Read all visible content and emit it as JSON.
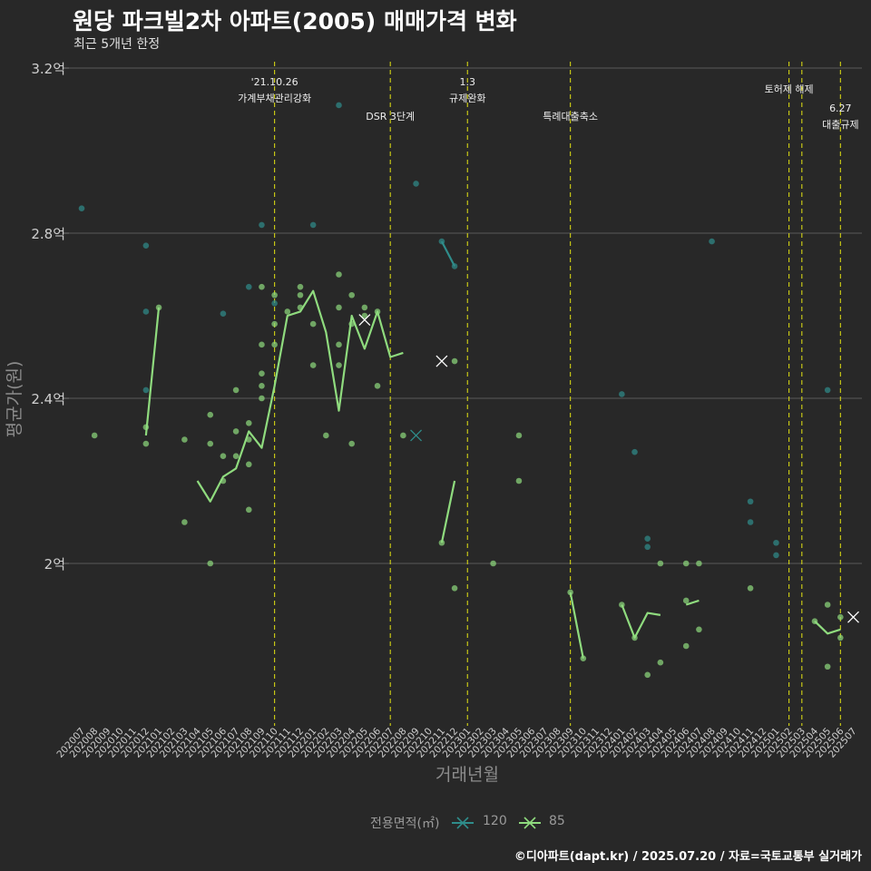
{
  "title": "원당 파크빌2차 아파트(2005) 매매가격 변화",
  "subtitle": "최근 5개년 한정",
  "caption": "©디아파트(dapt.kr) / 2025.07.20 / 자료=국토교통부 실거래가",
  "colors": {
    "s120": "#2f8d8b",
    "s85": "#8fdb7e",
    "event": "#d4d414",
    "grid": "#5a5a5a",
    "bg": "#282828"
  },
  "chart_data": {
    "type": "line",
    "xlabel": "거래년월",
    "ylabel": "평균가(원)",
    "y_ticks": [
      "2억",
      "2.4억",
      "2.8억",
      "3.2억"
    ],
    "y_tick_values": [
      2.0,
      2.4,
      2.8,
      3.2
    ],
    "ylim": [
      1.63,
      3.2
    ],
    "grid": true,
    "legend_position": "bottom",
    "legend_title": "전용면적(㎡)",
    "categories": [
      "202007",
      "202008",
      "202009",
      "202010",
      "202011",
      "202012",
      "202101",
      "202102",
      "202103",
      "202104",
      "202105",
      "202106",
      "202107",
      "202108",
      "202109",
      "202110",
      "202111",
      "202112",
      "202201",
      "202202",
      "202203",
      "202204",
      "202205",
      "202206",
      "202207",
      "202208",
      "202209",
      "202210",
      "202211",
      "202212",
      "202301",
      "202302",
      "202303",
      "202304",
      "202305",
      "202306",
      "202307",
      "202308",
      "202309",
      "202310",
      "202311",
      "202312",
      "202401",
      "202402",
      "202403",
      "202404",
      "202405",
      "202406",
      "202407",
      "202408",
      "202409",
      "202410",
      "202411",
      "202412",
      "202501",
      "202502",
      "202503",
      "202504",
      "202505",
      "202506",
      "202507"
    ],
    "series": [
      {
        "name": "120",
        "values": [
          2.86,
          null,
          null,
          null,
          null,
          2.61,
          null,
          null,
          null,
          null,
          null,
          2.605,
          null,
          2.67,
          null,
          2.63,
          null,
          null,
          2.82,
          null,
          3.11,
          null,
          null,
          null,
          null,
          null,
          2.92,
          null,
          2.78,
          2.72,
          null,
          null,
          null,
          null,
          null,
          null,
          null,
          null,
          null,
          null,
          null,
          null,
          2.41,
          null,
          2.06,
          null,
          null,
          null,
          null,
          2.78,
          null,
          null,
          2.12,
          null,
          2.02,
          null,
          null,
          null,
          2.42,
          null,
          null
        ],
        "points": [
          [
            0,
            2.86
          ],
          [
            5,
            2.61
          ],
          [
            5,
            2.42
          ],
          [
            5,
            2.77
          ],
          [
            11,
            2.605
          ],
          [
            13,
            2.67
          ],
          [
            14,
            2.82
          ],
          [
            15,
            2.63
          ],
          [
            18,
            2.82
          ],
          [
            20,
            3.11
          ],
          [
            26,
            2.92
          ],
          [
            28,
            2.78
          ],
          [
            29,
            2.72
          ],
          [
            42,
            2.41
          ],
          [
            43,
            2.27
          ],
          [
            44,
            2.06
          ],
          [
            44,
            2.04
          ],
          [
            49,
            2.78
          ],
          [
            52,
            2.15
          ],
          [
            52,
            2.1
          ],
          [
            54,
            2.02
          ],
          [
            54,
            2.05
          ],
          [
            58,
            2.42
          ]
        ],
        "markers_x": [
          [
            26,
            2.31
          ]
        ]
      },
      {
        "name": "85",
        "values": [
          null,
          null,
          null,
          null,
          null,
          2.31,
          2.62,
          null,
          null,
          2.2,
          2.15,
          2.21,
          2.23,
          2.32,
          2.28,
          2.43,
          2.6,
          2.61,
          2.66,
          2.56,
          2.37,
          2.6,
          2.52,
          2.61,
          2.5,
          2.51,
          null,
          null,
          2.05,
          2.2,
          null,
          null,
          null,
          null,
          null,
          null,
          null,
          null,
          1.93,
          1.77,
          null,
          null,
          1.9,
          1.82,
          1.88,
          1.875,
          null,
          1.9,
          1.91,
          null,
          null,
          null,
          null,
          null,
          null,
          null,
          null,
          1.86,
          1.83,
          1.84,
          null
        ],
        "points": [
          [
            1,
            2.31
          ],
          [
            5,
            2.33
          ],
          [
            5,
            2.29
          ],
          [
            6,
            2.62
          ],
          [
            8,
            2.3
          ],
          [
            8,
            2.1
          ],
          [
            10,
            2.36
          ],
          [
            10,
            2.29
          ],
          [
            10,
            2.0
          ],
          [
            11,
            2.26
          ],
          [
            11,
            2.2
          ],
          [
            12,
            2.42
          ],
          [
            12,
            2.26
          ],
          [
            12,
            2.32
          ],
          [
            13,
            2.34
          ],
          [
            13,
            2.3
          ],
          [
            13,
            2.24
          ],
          [
            13,
            2.13
          ],
          [
            14,
            2.43
          ],
          [
            14,
            2.4
          ],
          [
            14,
            2.53
          ],
          [
            14,
            2.46
          ],
          [
            14,
            2.67
          ],
          [
            15,
            2.65
          ],
          [
            15,
            2.53
          ],
          [
            15,
            2.58
          ],
          [
            16,
            2.61
          ],
          [
            17,
            2.67
          ],
          [
            17,
            2.65
          ],
          [
            17,
            2.62
          ],
          [
            18,
            2.58
          ],
          [
            18,
            2.48
          ],
          [
            19,
            2.31
          ],
          [
            20,
            2.7
          ],
          [
            20,
            2.62
          ],
          [
            20,
            2.53
          ],
          [
            20,
            2.48
          ],
          [
            21,
            2.65
          ],
          [
            21,
            2.58
          ],
          [
            21,
            2.29
          ],
          [
            22,
            2.62
          ],
          [
            22,
            2.6
          ],
          [
            23,
            2.43
          ],
          [
            23,
            2.61
          ],
          [
            25,
            2.31
          ],
          [
            28,
            2.05
          ],
          [
            29,
            2.49
          ],
          [
            29,
            1.94
          ],
          [
            32,
            2.0
          ],
          [
            34,
            2.31
          ],
          [
            34,
            2.2
          ],
          [
            38,
            1.93
          ],
          [
            39,
            1.77
          ],
          [
            42,
            1.9
          ],
          [
            43,
            1.82
          ],
          [
            44,
            1.73
          ],
          [
            45,
            2.0
          ],
          [
            45,
            1.76
          ],
          [
            47,
            2.0
          ],
          [
            47,
            1.91
          ],
          [
            47,
            1.8
          ],
          [
            48,
            2.0
          ],
          [
            48,
            1.84
          ],
          [
            52,
            1.94
          ],
          [
            57,
            1.86
          ],
          [
            58,
            1.9
          ],
          [
            58,
            1.75
          ],
          [
            59,
            1.87
          ],
          [
            59,
            1.82
          ]
        ],
        "markers_x": [
          [
            22,
            2.59
          ],
          [
            28,
            2.49
          ],
          [
            60,
            1.87
          ]
        ]
      }
    ],
    "events": [
      {
        "x": 15.0,
        "lines": [
          "'21.10.26",
          "가계부채관리강화"
        ],
        "row": "top"
      },
      {
        "x": 24.0,
        "lines": [
          "DSR 3단계"
        ],
        "row": "third"
      },
      {
        "x": 30.0,
        "lines": [
          "1.3",
          "규제완화"
        ],
        "row": "top"
      },
      {
        "x": 38.0,
        "lines": [
          "특례대출축소"
        ],
        "row": "third"
      },
      {
        "x": 55.0,
        "lines": [
          "토허제 해제"
        ],
        "row": "second"
      },
      {
        "x": 56.0,
        "lines": [],
        "row": "none"
      },
      {
        "x": 59.0,
        "lines": [
          "6.27",
          "대출규제"
        ],
        "row": "low"
      }
    ]
  }
}
